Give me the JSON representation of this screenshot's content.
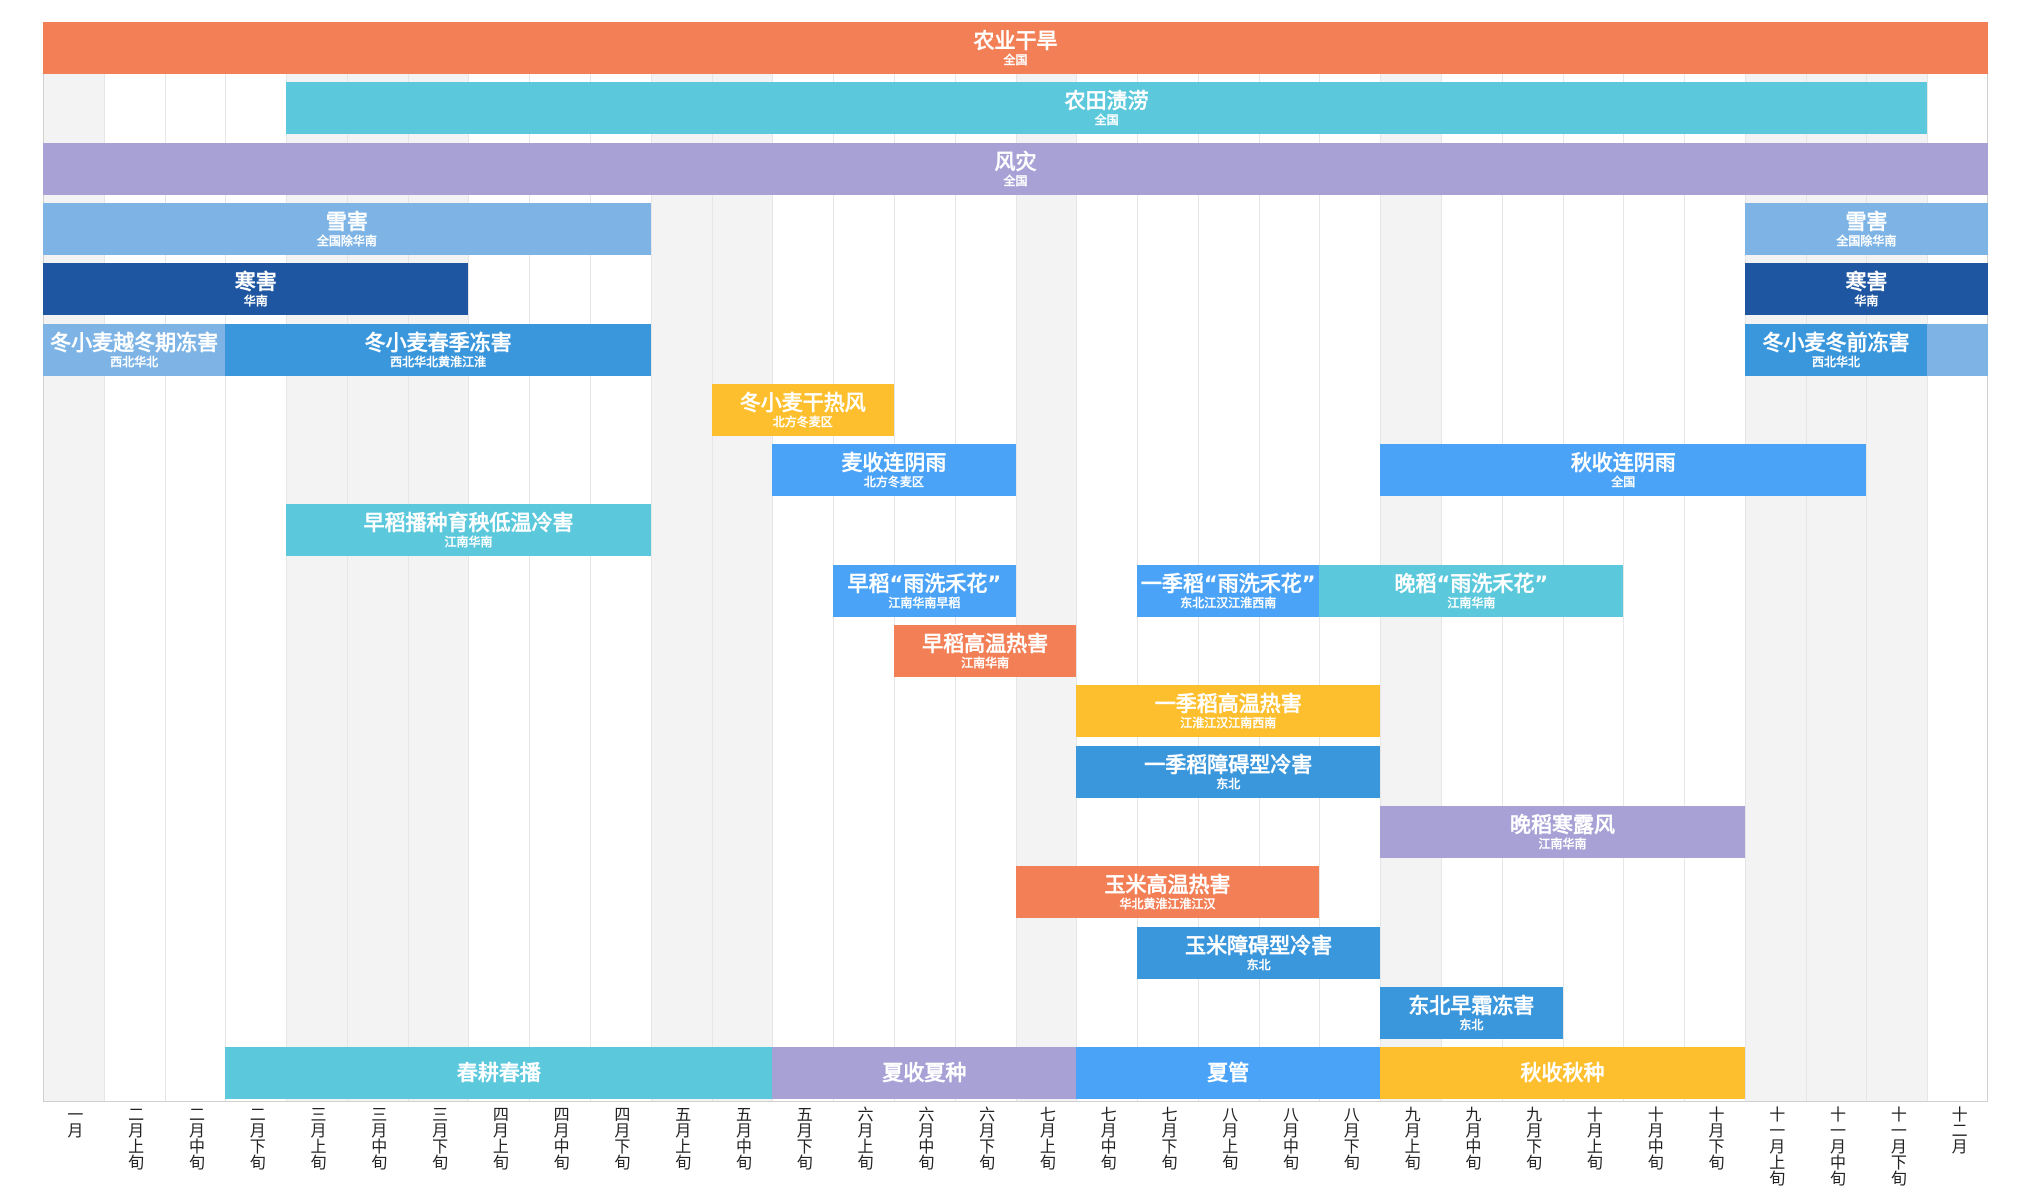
{
  "chart_data": {
    "type": "timeline",
    "periods": [
      "一月",
      "二月上旬",
      "二月中旬",
      "二月下旬",
      "三月上旬",
      "三月中旬",
      "三月下旬",
      "四月上旬",
      "四月中旬",
      "四月下旬",
      "五月上旬",
      "五月中旬",
      "五月下旬",
      "六月上旬",
      "六月中旬",
      "六月下旬",
      "七月上旬",
      "七月中旬",
      "七月下旬",
      "八月上旬",
      "八月中旬",
      "八月下旬",
      "九月上旬",
      "九月中旬",
      "九月下旬",
      "十月上旬",
      "十月中旬",
      "十月下旬",
      "十一月上旬",
      "十一月中旬",
      "十一月下旬",
      "十二月"
    ],
    "colors": {
      "orange": "#f37f56",
      "teal": "#5cc8dc",
      "purple": "#a7a1d6",
      "lightblue": "#7db4e5",
      "navy": "#1f56a2",
      "blue": "#3b97dc",
      "yellow": "#fdbf2d",
      "brightblue": "#4aa3f7"
    },
    "hazards": [
      {
        "name": "农业干旱",
        "region": "全国",
        "start": 0,
        "end": 32,
        "row": 0,
        "color": "orange"
      },
      {
        "name": "农田渍涝",
        "region": "全国",
        "start": 4,
        "end": 31,
        "row": 1,
        "color": "teal"
      },
      {
        "name": "风灾",
        "region": "全国",
        "start": 0,
        "end": 32,
        "row": 2,
        "color": "purple"
      },
      {
        "name": "雪害",
        "region": "全国除华南",
        "start": 0,
        "end": 10,
        "row": 3,
        "color": "lightblue"
      },
      {
        "name": "雪害",
        "region": "全国除华南",
        "start": 28,
        "end": 32,
        "row": 3,
        "color": "lightblue"
      },
      {
        "name": "寒害",
        "region": "华南",
        "start": 0,
        "end": 7,
        "row": 4,
        "color": "navy"
      },
      {
        "name": "寒害",
        "region": "华南",
        "start": 28,
        "end": 32,
        "row": 4,
        "color": "navy"
      },
      {
        "name": "冬小麦越冬期冻害",
        "region": "西北华北",
        "start": 0,
        "end": 3,
        "row": 5,
        "color": "lightblue"
      },
      {
        "name": "冬小麦春季冻害",
        "region": "西北华北黄淮江淮",
        "start": 3,
        "end": 10,
        "row": 5,
        "color": "blue"
      },
      {
        "name": "",
        "region": "",
        "start": 31,
        "end": 32,
        "row": 5,
        "color": "lightblue"
      },
      {
        "name": "冬小麦冬前冻害",
        "region": "西北华北",
        "start": 28,
        "end": 31,
        "row": 5,
        "color": "blue"
      },
      {
        "name": "冬小麦干热风",
        "region": "北方冬麦区",
        "start": 11,
        "end": 14,
        "row": 6,
        "color": "yellow"
      },
      {
        "name": "麦收连阴雨",
        "region": "北方冬麦区",
        "start": 12,
        "end": 16,
        "row": 7,
        "color": "brightblue"
      },
      {
        "name": "秋收连阴雨",
        "region": "全国",
        "start": 22,
        "end": 30,
        "row": 7,
        "color": "brightblue"
      },
      {
        "name": "早稻播种育秧低温冷害",
        "region": "江南华南",
        "start": 4,
        "end": 10,
        "row": 8,
        "color": "teal"
      },
      {
        "name": "早稻“雨洗禾花”",
        "region": "江南华南早稻",
        "start": 13,
        "end": 16,
        "row": 9,
        "color": "brightblue"
      },
      {
        "name": "一季稻“雨洗禾花”",
        "region": "东北江汉江淮西南",
        "start": 18,
        "end": 21,
        "row": 9,
        "color": "brightblue"
      },
      {
        "name": "晚稻“雨洗禾花”",
        "region": "江南华南",
        "start": 21,
        "end": 26,
        "row": 9,
        "color": "teal"
      },
      {
        "name": "早稻高温热害",
        "region": "江南华南",
        "start": 14,
        "end": 17,
        "row": 10,
        "color": "orange"
      },
      {
        "name": "一季稻高温热害",
        "region": "江淮江汉江南西南",
        "start": 17,
        "end": 22,
        "row": 11,
        "color": "yellow"
      },
      {
        "name": "一季稻障碍型冷害",
        "region": "东北",
        "start": 17,
        "end": 22,
        "row": 12,
        "color": "blue"
      },
      {
        "name": "晚稻寒露风",
        "region": "江南华南",
        "start": 22,
        "end": 28,
        "row": 13,
        "color": "purple"
      },
      {
        "name": "玉米高温热害",
        "region": "华北黄淮江淮江汉",
        "start": 16,
        "end": 21,
        "row": 14,
        "color": "orange"
      },
      {
        "name": "玉米障碍型冷害",
        "region": "东北",
        "start": 18,
        "end": 22,
        "row": 15,
        "color": "blue"
      },
      {
        "name": "东北早霜冻害",
        "region": "东北",
        "start": 22,
        "end": 25,
        "row": 16,
        "color": "blue"
      }
    ],
    "phases": [
      {
        "name": "春耕春播",
        "start": 3,
        "end": 12,
        "color": "teal"
      },
      {
        "name": "夏收夏种",
        "start": 12,
        "end": 17,
        "color": "purple"
      },
      {
        "name": "夏管",
        "start": 17,
        "end": 22,
        "color": "brightblue"
      },
      {
        "name": "秋收秋种",
        "start": 22,
        "end": 28,
        "color": "yellow"
      }
    ],
    "shaded_periods": [
      0,
      4,
      5,
      6,
      10,
      11,
      16,
      22,
      28,
      29,
      30
    ]
  }
}
